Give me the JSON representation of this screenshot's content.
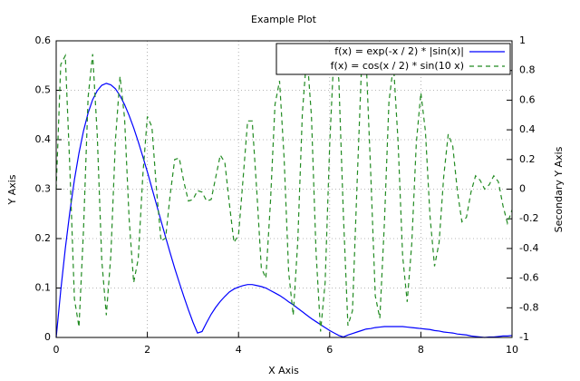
{
  "chart_data": {
    "type": "line",
    "title": "Example Plot",
    "x_label": "X Axis",
    "y_label": "Y Axis",
    "y2_label": "Secondary Y Axis",
    "x": [
      0,
      0.1,
      0.2,
      0.3,
      0.4,
      0.5,
      0.6,
      0.7,
      0.8,
      0.9,
      1,
      1.1,
      1.2,
      1.3,
      1.4,
      1.5,
      1.6,
      1.7,
      1.8,
      1.9,
      2,
      2.1,
      2.2,
      2.3,
      2.4,
      2.5,
      2.6,
      2.7,
      2.8,
      2.9,
      3,
      3.1,
      3.2,
      3.3,
      3.4,
      3.5,
      3.6,
      3.7,
      3.8,
      3.9,
      4,
      4.1,
      4.2,
      4.3,
      4.4,
      4.5,
      4.6,
      4.7,
      4.8,
      4.9,
      5,
      5.1,
      5.2,
      5.3,
      5.4,
      5.5,
      5.6,
      5.7,
      5.8,
      5.9,
      6,
      6.1,
      6.2,
      6.3,
      6.4,
      6.5,
      6.6,
      6.7,
      6.8,
      6.9,
      7,
      7.1,
      7.2,
      7.3,
      7.4,
      7.5,
      7.6,
      7.7,
      7.8,
      7.9,
      8,
      8.1,
      8.2,
      8.3,
      8.4,
      8.5,
      8.6,
      8.7,
      8.8,
      8.9,
      9,
      9.1,
      9.2,
      9.3,
      9.4,
      9.5,
      9.6,
      9.7,
      9.8,
      9.9,
      10
    ],
    "series": [
      {
        "name": "f(x) = exp(-x / 2) * |sin(x)|",
        "color": "#0000ff",
        "dashed": false,
        "values": [
          0,
          0.095,
          0.18,
          0.254,
          0.319,
          0.373,
          0.418,
          0.454,
          0.481,
          0.499,
          0.51,
          0.514,
          0.511,
          0.503,
          0.489,
          0.471,
          0.449,
          0.424,
          0.396,
          0.366,
          0.335,
          0.302,
          0.269,
          0.236,
          0.203,
          0.171,
          0.14,
          0.111,
          0.083,
          0.056,
          0.031,
          0.009,
          0.012,
          0.03,
          0.047,
          0.061,
          0.073,
          0.083,
          0.092,
          0.098,
          0.102,
          0.105,
          0.107,
          0.107,
          0.105,
          0.103,
          0.1,
          0.095,
          0.09,
          0.085,
          0.079,
          0.072,
          0.066,
          0.059,
          0.052,
          0.045,
          0.038,
          0.032,
          0.026,
          0.02,
          0.014,
          0.009,
          0.004,
          0.001,
          0.005,
          0.008,
          0.011,
          0.014,
          0.017,
          0.018,
          0.02,
          0.021,
          0.022,
          0.022,
          0.022,
          0.022,
          0.022,
          0.021,
          0.02,
          0.019,
          0.018,
          0.017,
          0.016,
          0.014,
          0.013,
          0.011,
          0.01,
          0.009,
          0.007,
          0.006,
          0.005,
          0.003,
          0.002,
          0.001,
          0,
          0.001,
          0.001,
          0.002,
          0.003,
          0.003,
          0.004
        ]
      },
      {
        "name": "f(x) = cos(x / 2) * sin(10 x)",
        "color": "#228b22",
        "dashed": true,
        "axis": "y2",
        "values": [
          0,
          0.84,
          0.9,
          0.14,
          -0.74,
          -0.93,
          -0.27,
          0.62,
          0.91,
          0.37,
          -0.48,
          -0.85,
          -0.44,
          0.33,
          0.76,
          0.48,
          -0.2,
          -0.63,
          -0.47,
          0.09,
          0.49,
          0.42,
          0,
          -0.35,
          -0.33,
          -0.04,
          0.2,
          0.21,
          0.05,
          -0.08,
          -0.07,
          -0.01,
          -0.02,
          -0.08,
          -0.07,
          0.08,
          0.23,
          0.18,
          -0.1,
          -0.36,
          -0.31,
          0.07,
          0.46,
          0.46,
          -0.01,
          -0.53,
          -0.6,
          -0.09,
          0.57,
          0.73,
          0.21,
          -0.56,
          -0.85,
          -0.35,
          0.51,
          0.92,
          0.49,
          -0.42,
          -0.96,
          -0.63,
          0.3,
          0.96,
          0.74,
          -0.17,
          -0.92,
          -0.82,
          0.03,
          0.84,
          0.87,
          0.11,
          -0.72,
          -0.87,
          -0.23,
          0.59,
          0.84,
          0.32,
          -0.45,
          -0.76,
          -0.37,
          0.31,
          0.65,
          0.39,
          -0.18,
          -0.52,
          -0.36,
          0.08,
          0.37,
          0.29,
          -0.01,
          -0.22,
          -0.19,
          -0.02,
          0.09,
          0.06,
          0,
          0.03,
          0.09,
          0.05,
          -0.11,
          -0.23,
          -0.14
        ]
      }
    ],
    "xlim": [
      0,
      10
    ],
    "xticks": [
      0,
      2,
      4,
      6,
      8,
      10
    ],
    "ylim": [
      0,
      0.6
    ],
    "yticks": [
      0,
      0.1,
      0.2,
      0.3,
      0.4,
      0.5,
      0.6
    ],
    "y2lim": [
      -1,
      1
    ],
    "y2ticks": [
      -1,
      -0.8,
      -0.6,
      -0.4,
      -0.2,
      0,
      0.2,
      0.4,
      0.6,
      0.8,
      1
    ],
    "grid": true,
    "legend": "top-right"
  }
}
